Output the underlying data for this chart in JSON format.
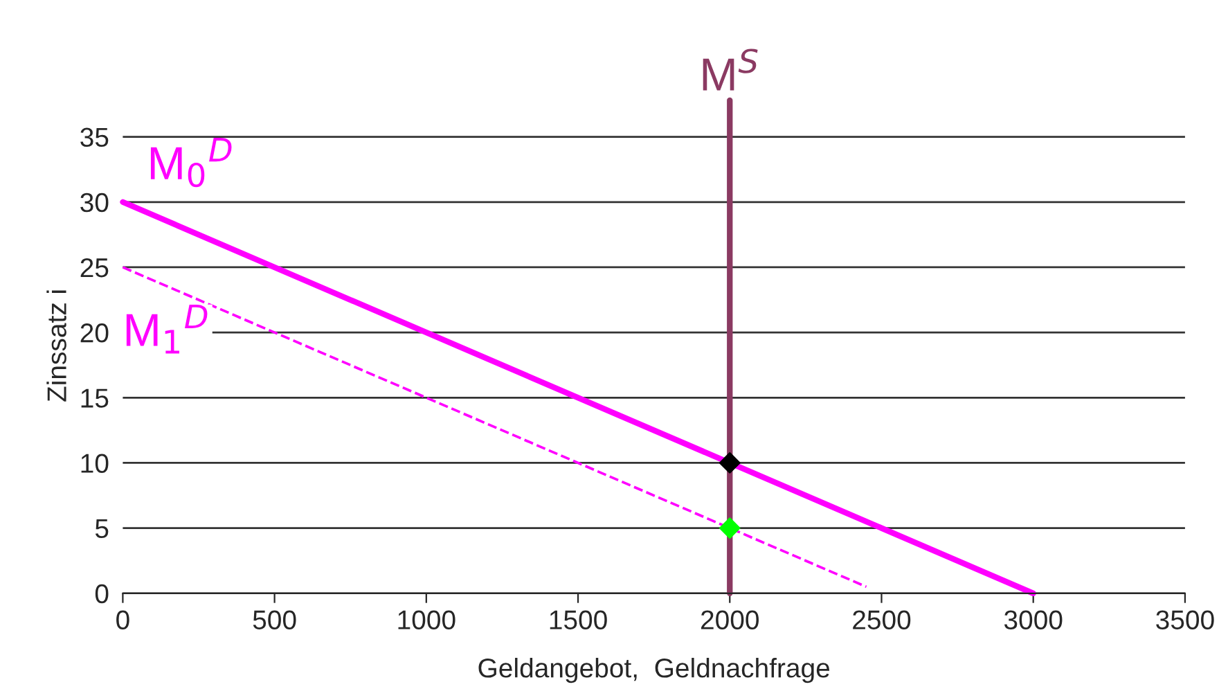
{
  "chart_data": {
    "type": "line",
    "xlabel": "Geldangebot,  Geldnachfrage",
    "ylabel": "Zinssatz i",
    "xlim": [
      0,
      3500
    ],
    "xticks": [
      0,
      500,
      1000,
      1500,
      2000,
      2500,
      3000,
      3500
    ],
    "ylim": [
      0,
      38
    ],
    "yticks": [
      0,
      5,
      10,
      15,
      20,
      25,
      30,
      35
    ],
    "grid": "y",
    "legend": false,
    "series": [
      {
        "name": "M$_{0}$$^{D}$",
        "color": "#ff00ff",
        "x": [
          0,
          3000
        ],
        "values": [
          30,
          0
        ],
        "line_style": "solid",
        "marker": "none"
      },
      {
        "name": "M$_{1}$$^{D}$",
        "color": "#ff00ff",
        "x": [
          0,
          2450
        ],
        "values": [
          25,
          0.5
        ],
        "line_style": "dashed",
        "marker": "none"
      },
      {
        "name": "M$^{S}$",
        "color": "#8b3a62",
        "x": [
          2000,
          2000
        ],
        "values": [
          0,
          37.8
        ],
        "line_style": "solid",
        "marker": "none"
      },
      {
        "type": "scatter",
        "color": "#000000",
        "x": [
          2000
        ],
        "values": [
          10
        ],
        "marker": "diamond"
      },
      {
        "type": "scatter",
        "color": "#00ff00",
        "x": [
          2000
        ],
        "values": [
          5
        ],
        "marker": "diamond"
      }
    ]
  }
}
